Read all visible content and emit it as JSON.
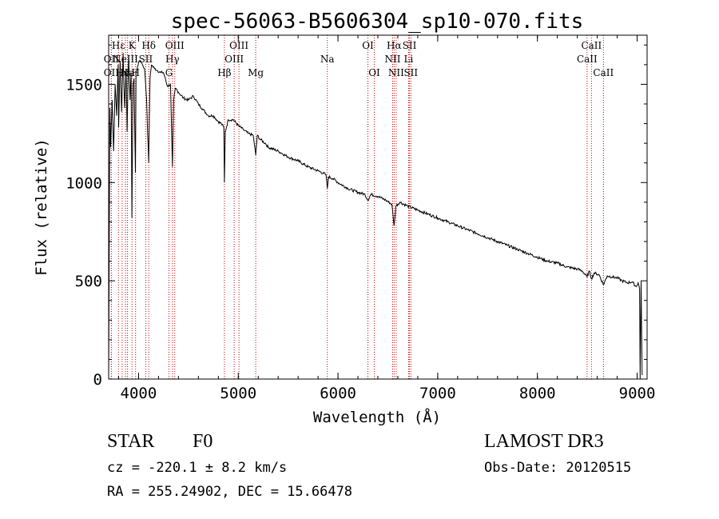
{
  "chart_data": {
    "type": "line",
    "title": "spec-56063-B5606304_sp10-070.fits",
    "xlabel": "Wavelength (Å)",
    "ylabel": "Flux (relative)",
    "xlim": [
      3700,
      9100
    ],
    "ylim": [
      0,
      1750
    ],
    "xticks": [
      4000,
      5000,
      6000,
      7000,
      8000,
      9000
    ],
    "yticks": [
      0,
      500,
      1000,
      1500
    ],
    "series": [
      {
        "name": "spectrum",
        "x": [
          3700,
          3712,
          3720,
          3735,
          3750,
          3765,
          3780,
          3795,
          3800,
          3815,
          3830,
          3845,
          3860,
          3875,
          3885,
          3900,
          3915,
          3925,
          3933,
          3945,
          3955,
          3968,
          3975,
          3990,
          4000,
          4020,
          4040,
          4060,
          4080,
          4101,
          4115,
          4130,
          4160,
          4190,
          4220,
          4250,
          4290,
          4320,
          4340,
          4352,
          4370,
          4400,
          4450,
          4500,
          4550,
          4600,
          4650,
          4700,
          4750,
          4800,
          4830,
          4855,
          4861,
          4870,
          4900,
          4950,
          5000,
          5050,
          5100,
          5150,
          5175,
          5190,
          5220,
          5270,
          5300,
          5400,
          5500,
          5600,
          5700,
          5800,
          5880,
          5893,
          5905,
          5950,
          6000,
          6100,
          6200,
          6270,
          6300,
          6330,
          6400,
          6480,
          6540,
          6563,
          6580,
          6620,
          6700,
          6800,
          6900,
          7000,
          7100,
          7200,
          7300,
          7400,
          7500,
          7600,
          7700,
          7800,
          7900,
          8000,
          8100,
          8200,
          8300,
          8400,
          8450,
          8498,
          8520,
          8542,
          8570,
          8620,
          8662,
          8700,
          8750,
          8800,
          8850,
          8900,
          8950,
          8990,
          9010,
          9025,
          9030,
          9040,
          9050
        ],
        "y": [
          0,
          1380,
          1180,
          1420,
          1160,
          1500,
          1340,
          1600,
          1280,
          1620,
          1360,
          1660,
          1380,
          1580,
          1260,
          1650,
          1420,
          1560,
          820,
          1500,
          1530,
          1050,
          1560,
          1590,
          1610,
          1620,
          1600,
          1580,
          1430,
          1100,
          1530,
          1600,
          1580,
          1570,
          1560,
          1560,
          1490,
          1500,
          1080,
          1420,
          1480,
          1460,
          1430,
          1420,
          1440,
          1400,
          1370,
          1340,
          1340,
          1310,
          1300,
          1280,
          1000,
          1260,
          1320,
          1320,
          1290,
          1270,
          1250,
          1240,
          1140,
          1240,
          1220,
          1200,
          1180,
          1160,
          1130,
          1110,
          1080,
          1060,
          1040,
          970,
          1030,
          1020,
          1000,
          970,
          950,
          940,
          910,
          940,
          930,
          910,
          890,
          780,
          880,
          900,
          880,
          860,
          840,
          820,
          800,
          780,
          760,
          740,
          720,
          700,
          680,
          660,
          640,
          620,
          600,
          590,
          570,
          560,
          550,
          520,
          550,
          510,
          540,
          530,
          480,
          525,
          520,
          515,
          500,
          490,
          495,
          470,
          490,
          460,
          0,
          500,
          20
        ]
      }
    ],
    "line_markers": [
      {
        "label": "OII",
        "wavelength": 3727,
        "row": 2
      },
      {
        "label": "Hε",
        "wavelength": 3798,
        "row": 1
      },
      {
        "label": "OII",
        "wavelength": 3727,
        "row": 3
      },
      {
        "label": "Hε",
        "wavelength": 3835,
        "row": 3
      },
      {
        "label": "NeIII",
        "wavelength": 3869,
        "row": 2
      },
      {
        "label": "K",
        "wavelength": 3934,
        "row": 1
      },
      {
        "label": "Na",
        "wavelength": 3889,
        "row": 3
      },
      {
        "label": "H",
        "wavelength": 3970,
        "row": 3
      },
      {
        "label": "SII",
        "wavelength": 4072,
        "row": 2
      },
      {
        "label": "Hδ",
        "wavelength": 4102,
        "row": 1
      },
      {
        "label": "G",
        "wavelength": 4305,
        "row": 3
      },
      {
        "label": "OIII",
        "wavelength": 4363,
        "row": 1
      },
      {
        "label": "Hγ",
        "wavelength": 4340,
        "row": 2
      },
      {
        "label": "Hβ",
        "wavelength": 4861,
        "row": 3
      },
      {
        "label": "OIII",
        "wavelength": 4959,
        "row": 2
      },
      {
        "label": "OIII",
        "wavelength": 5007,
        "row": 1
      },
      {
        "label": "Mg",
        "wavelength": 5175,
        "row": 3
      },
      {
        "label": "Na",
        "wavelength": 5893,
        "row": 2
      },
      {
        "label": "OI",
        "wavelength": 6300,
        "row": 1
      },
      {
        "label": "OI",
        "wavelength": 6364,
        "row": 3
      },
      {
        "label": "Hα",
        "wavelength": 6563,
        "row": 1
      },
      {
        "label": "NII",
        "wavelength": 6548,
        "row": 2
      },
      {
        "label": "NII",
        "wavelength": 6583,
        "row": 3
      },
      {
        "label": "SII",
        "wavelength": 6717,
        "row": 1
      },
      {
        "label": "Li",
        "wavelength": 6708,
        "row": 2
      },
      {
        "label": "SII",
        "wavelength": 6731,
        "row": 3
      },
      {
        "label": "CaII",
        "wavelength": 8542,
        "row": 1
      },
      {
        "label": "CaII",
        "wavelength": 8498,
        "row": 2
      },
      {
        "label": "CaII",
        "wavelength": 8662,
        "row": 3
      }
    ],
    "marker_color": "#cc0000"
  },
  "info": {
    "class_label": "STAR",
    "subclass": "F0",
    "survey": "LAMOST DR3",
    "cz": "cz = -220.1 ± 8.2 km/s",
    "obs_date": "Obs-Date: 20120515",
    "coords": "RA = 255.24902, DEC =  15.66478"
  }
}
